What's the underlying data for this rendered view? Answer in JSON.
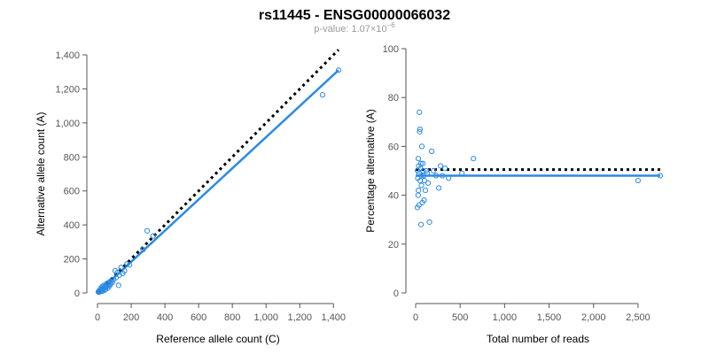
{
  "header": {
    "title": "rs11445 - ENSG00000066032",
    "pvalue_prefix": "p-value: 1.07×10",
    "pvalue_exponent": "−6"
  },
  "colors": {
    "series": "#2b8ae6",
    "reference_line": "#000000",
    "axis": "#555555",
    "subtitle": "#999999"
  },
  "chart_data": [
    {
      "type": "scatter",
      "xlabel": "Reference allele count (C)",
      "ylabel": "Alternative allele count (A)",
      "xlim": [
        0,
        1430
      ],
      "ylim": [
        0,
        1400
      ],
      "xticks": [
        0,
        200,
        400,
        600,
        800,
        1000,
        1200,
        1400
      ],
      "xtick_labels": [
        "0",
        "200",
        "400",
        "600",
        "800",
        "1,000",
        "1,200",
        "1,400"
      ],
      "yticks": [
        0,
        200,
        400,
        600,
        800,
        1000,
        1200,
        1400
      ],
      "ytick_labels": [
        "0",
        "200",
        "400",
        "600",
        "800",
        "1,000",
        "1,200",
        "1,400"
      ],
      "grid": false,
      "points": [
        [
          5,
          6
        ],
        [
          8,
          10
        ],
        [
          10,
          4
        ],
        [
          12,
          14
        ],
        [
          15,
          8
        ],
        [
          18,
          22
        ],
        [
          20,
          12
        ],
        [
          22,
          30
        ],
        [
          25,
          18
        ],
        [
          28,
          10
        ],
        [
          30,
          38
        ],
        [
          32,
          20
        ],
        [
          35,
          25
        ],
        [
          38,
          45
        ],
        [
          40,
          15
        ],
        [
          42,
          30
        ],
        [
          45,
          40
        ],
        [
          48,
          22
        ],
        [
          50,
          35
        ],
        [
          55,
          55
        ],
        [
          60,
          28
        ],
        [
          62,
          45
        ],
        [
          65,
          60
        ],
        [
          70,
          40
        ],
        [
          72,
          65
        ],
        [
          78,
          52
        ],
        [
          82,
          70
        ],
        [
          88,
          62
        ],
        [
          95,
          80
        ],
        [
          105,
          130
        ],
        [
          110,
          90
        ],
        [
          118,
          120
        ],
        [
          125,
          45
        ],
        [
          130,
          105
        ],
        [
          140,
          150
        ],
        [
          150,
          115
        ],
        [
          160,
          130
        ],
        [
          175,
          170
        ],
        [
          190,
          165
        ],
        [
          270,
          255
        ],
        [
          295,
          365
        ],
        [
          330,
          335
        ],
        [
          1335,
          1165
        ],
        [
          1430,
          1310
        ]
      ],
      "lines": [
        {
          "kind": "fit",
          "x": [
            0,
            1430
          ],
          "y": [
            0,
            1310
          ]
        },
        {
          "kind": "expected",
          "x": [
            0,
            1430
          ],
          "y": [
            0,
            1430
          ]
        }
      ]
    },
    {
      "type": "scatter",
      "xlabel": "Total number of reads",
      "ylabel": "Percentage alternative (A)",
      "xlim": [
        0,
        2750
      ],
      "ylim": [
        0,
        100
      ],
      "xticks": [
        0,
        500,
        1000,
        1500,
        2000,
        2500
      ],
      "xtick_labels": [
        "0",
        "500",
        "1,000",
        "1,500",
        "2,000",
        "2,500"
      ],
      "yticks": [
        0,
        20,
        40,
        60,
        80,
        100
      ],
      "ytick_labels": [
        "0",
        "20",
        "40",
        "60",
        "80",
        "100"
      ],
      "grid": false,
      "points": [
        [
          20,
          35
        ],
        [
          22,
          50
        ],
        [
          25,
          47
        ],
        [
          28,
          40
        ],
        [
          30,
          55
        ],
        [
          32,
          42
        ],
        [
          35,
          52
        ],
        [
          38,
          36
        ],
        [
          40,
          49
        ],
        [
          42,
          74
        ],
        [
          45,
          66
        ],
        [
          48,
          67
        ],
        [
          50,
          46
        ],
        [
          55,
          51
        ],
        [
          58,
          53
        ],
        [
          60,
          28
        ],
        [
          62,
          48
        ],
        [
          65,
          44
        ],
        [
          70,
          60
        ],
        [
          75,
          37
        ],
        [
          80,
          53
        ],
        [
          85,
          50
        ],
        [
          90,
          48
        ],
        [
          95,
          38
        ],
        [
          100,
          46
        ],
        [
          110,
          42
        ],
        [
          120,
          50
        ],
        [
          130,
          49
        ],
        [
          140,
          45
        ],
        [
          155,
          29
        ],
        [
          180,
          58
        ],
        [
          200,
          50
        ],
        [
          230,
          48
        ],
        [
          260,
          43
        ],
        [
          280,
          52
        ],
        [
          300,
          48
        ],
        [
          330,
          51
        ],
        [
          370,
          47
        ],
        [
          520,
          49
        ],
        [
          650,
          55
        ],
        [
          2500,
          46
        ],
        [
          2750,
          48
        ]
      ],
      "lines": [
        {
          "kind": "fit",
          "x": [
            0,
            2750
          ],
          "y": [
            48,
            48
          ]
        },
        {
          "kind": "expected",
          "x": [
            0,
            2750
          ],
          "y": [
            50.5,
            50.5
          ]
        }
      ]
    }
  ]
}
